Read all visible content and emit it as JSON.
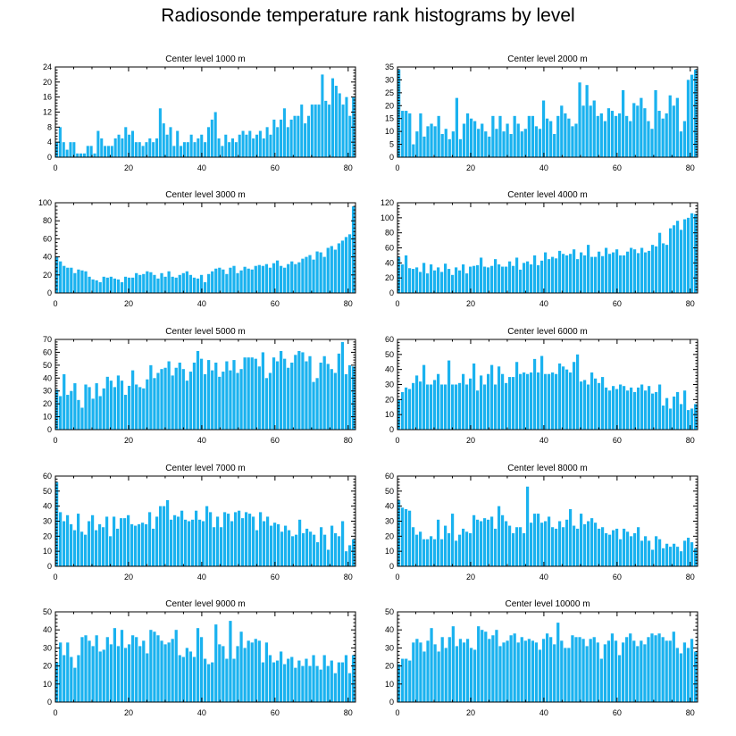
{
  "title": "Radiosonde temperature rank histograms by level",
  "colors": {
    "bar": "#1ab2ef",
    "axis": "#000000",
    "background": "#ffffff"
  },
  "chart_data": [
    {
      "type": "bar",
      "title": "Center level 1000 m",
      "xlim": [
        0,
        82
      ],
      "xticks": [
        0,
        20,
        40,
        60,
        80
      ],
      "ylim": [
        0,
        24
      ],
      "yticks": [
        0,
        4,
        8,
        12,
        16,
        20,
        24
      ],
      "values": [
        4,
        8,
        4,
        2,
        4,
        4,
        1,
        1,
        1,
        3,
        3,
        1,
        7,
        5,
        3,
        3,
        3,
        5,
        6,
        5,
        8,
        6,
        7,
        4,
        4,
        3,
        4,
        5,
        4,
        5,
        13,
        9,
        6,
        8,
        3,
        7,
        3,
        4,
        4,
        6,
        4,
        5,
        6,
        4,
        8,
        10,
        12,
        5,
        3,
        6,
        4,
        5,
        4,
        6,
        7,
        6,
        7,
        5,
        6,
        7,
        5,
        8,
        6,
        10,
        8,
        10,
        13,
        8,
        10,
        11,
        11,
        14,
        9,
        11,
        14,
        14,
        14,
        22,
        15,
        14,
        21,
        19,
        17,
        14,
        16,
        11,
        16
      ]
    },
    {
      "type": "bar",
      "title": "Center level 2000 m",
      "xlim": [
        0,
        82
      ],
      "xticks": [
        0,
        20,
        40,
        60,
        80
      ],
      "ylim": [
        0,
        35
      ],
      "yticks": [
        0,
        5,
        10,
        15,
        20,
        25,
        30,
        35
      ],
      "values": [
        34,
        18,
        18,
        17,
        5,
        10,
        17,
        8,
        12,
        13,
        12,
        16,
        9,
        11,
        7,
        10,
        23,
        7,
        13,
        17,
        15,
        14,
        11,
        13,
        10,
        8,
        16,
        11,
        16,
        10,
        13,
        9,
        16,
        13,
        10,
        11,
        16,
        16,
        12,
        11,
        22,
        15,
        14,
        9,
        16,
        20,
        17,
        15,
        12,
        13,
        29,
        20,
        28,
        20,
        22,
        16,
        17,
        14,
        19,
        18,
        16,
        17,
        26,
        16,
        14,
        21,
        20,
        23,
        19,
        14,
        11,
        26,
        18,
        15,
        17,
        24,
        20,
        23,
        10,
        14,
        30,
        32,
        34
      ]
    },
    {
      "type": "bar",
      "title": "Center level 3000 m",
      "xlim": [
        0,
        82
      ],
      "xticks": [
        0,
        20,
        40,
        60,
        80
      ],
      "ylim": [
        0,
        100
      ],
      "yticks": [
        0,
        20,
        40,
        60,
        80,
        100
      ],
      "values": [
        40,
        35,
        30,
        28,
        28,
        22,
        26,
        25,
        24,
        18,
        15,
        14,
        12,
        18,
        17,
        18,
        16,
        15,
        12,
        18,
        17,
        17,
        22,
        20,
        21,
        24,
        23,
        20,
        16,
        22,
        18,
        24,
        18,
        17,
        20,
        22,
        24,
        20,
        17,
        16,
        20,
        12,
        21,
        24,
        27,
        28,
        26,
        21,
        28,
        30,
        22,
        25,
        29,
        27,
        26,
        30,
        31,
        30,
        32,
        28,
        33,
        36,
        30,
        28,
        32,
        35,
        32,
        34,
        38,
        40,
        42,
        37,
        46,
        45,
        40,
        50,
        52,
        48,
        55,
        58,
        62,
        65,
        96
      ]
    },
    {
      "type": "bar",
      "title": "Center level 4000 m",
      "xlim": [
        0,
        82
      ],
      "xticks": [
        0,
        20,
        40,
        60,
        80
      ],
      "ylim": [
        0,
        120
      ],
      "yticks": [
        0,
        20,
        40,
        60,
        80,
        100,
        120
      ],
      "values": [
        48,
        38,
        50,
        33,
        32,
        34,
        28,
        40,
        26,
        38,
        30,
        34,
        28,
        39,
        32,
        24,
        34,
        30,
        38,
        26,
        35,
        36,
        37,
        47,
        35,
        34,
        36,
        45,
        38,
        35,
        35,
        42,
        36,
        47,
        31,
        40,
        42,
        38,
        50,
        37,
        43,
        54,
        45,
        48,
        46,
        56,
        52,
        50,
        52,
        58,
        45,
        54,
        50,
        64,
        48,
        48,
        55,
        49,
        60,
        52,
        54,
        58,
        50,
        50,
        55,
        60,
        58,
        53,
        60,
        54,
        56,
        64,
        62,
        80,
        66,
        64,
        86,
        90,
        96,
        84,
        98,
        100,
        106,
        105
      ]
    },
    {
      "type": "bar",
      "title": "Center level 5000 m",
      "xlim": [
        0,
        82
      ],
      "xticks": [
        0,
        20,
        40,
        60,
        80
      ],
      "ylim": [
        0,
        70
      ],
      "yticks": [
        0,
        10,
        20,
        30,
        40,
        50,
        60,
        70
      ],
      "values": [
        31,
        26,
        43,
        27,
        30,
        36,
        23,
        17,
        35,
        33,
        24,
        36,
        26,
        32,
        41,
        38,
        33,
        42,
        38,
        27,
        34,
        46,
        35,
        33,
        32,
        39,
        50,
        40,
        44,
        47,
        48,
        53,
        42,
        48,
        52,
        47,
        38,
        45,
        52,
        61,
        55,
        43,
        54,
        46,
        52,
        41,
        45,
        53,
        46,
        54,
        44,
        47,
        56,
        56,
        56,
        55,
        49,
        60,
        40,
        44,
        56,
        53,
        61,
        55,
        48,
        52,
        58,
        61,
        60,
        53,
        57,
        37,
        40,
        52,
        57,
        51,
        47,
        44,
        59,
        68,
        43,
        50,
        49
      ]
    },
    {
      "type": "bar",
      "title": "Center level 6000 m",
      "xlim": [
        0,
        82
      ],
      "xticks": [
        0,
        20,
        40,
        60,
        80
      ],
      "ylim": [
        0,
        60
      ],
      "yticks": [
        0,
        10,
        20,
        30,
        40,
        50,
        60
      ],
      "values": [
        20,
        25,
        28,
        27,
        31,
        36,
        32,
        43,
        30,
        30,
        33,
        37,
        30,
        30,
        46,
        30,
        30,
        31,
        37,
        30,
        34,
        44,
        26,
        36,
        30,
        37,
        43,
        30,
        42,
        37,
        31,
        35,
        35,
        45,
        37,
        38,
        37,
        38,
        47,
        38,
        49,
        37,
        37,
        38,
        37,
        44,
        42,
        40,
        38,
        45,
        50,
        32,
        33,
        30,
        38,
        34,
        31,
        35,
        28,
        26,
        29,
        27,
        30,
        29,
        26,
        28,
        25,
        28,
        30,
        26,
        29,
        24,
        25,
        30,
        16,
        21,
        14,
        22,
        25,
        17,
        26,
        13,
        14,
        17
      ]
    },
    {
      "type": "bar",
      "title": "Center level 7000 m",
      "xlim": [
        0,
        82
      ],
      "xticks": [
        0,
        20,
        40,
        60,
        80
      ],
      "ylim": [
        0,
        60
      ],
      "yticks": [
        0,
        10,
        20,
        30,
        40,
        50,
        60
      ],
      "values": [
        56,
        36,
        30,
        34,
        28,
        24,
        35,
        23,
        21,
        30,
        34,
        24,
        28,
        26,
        33,
        20,
        33,
        25,
        32,
        32,
        34,
        28,
        27,
        28,
        29,
        28,
        36,
        25,
        33,
        40,
        40,
        44,
        31,
        34,
        33,
        37,
        31,
        30,
        31,
        37,
        31,
        30,
        40,
        36,
        26,
        33,
        26,
        36,
        35,
        30,
        36,
        37,
        32,
        36,
        35,
        33,
        24,
        36,
        30,
        33,
        27,
        29,
        28,
        23,
        27,
        24,
        20,
        21,
        31,
        22,
        25,
        23,
        21,
        16,
        26,
        21,
        11,
        27,
        22,
        20,
        30,
        10,
        14,
        18
      ]
    },
    {
      "type": "bar",
      "title": "Center level 8000 m",
      "xlim": [
        0,
        82
      ],
      "xticks": [
        0,
        20,
        40,
        60,
        80
      ],
      "ylim": [
        0,
        60
      ],
      "yticks": [
        0,
        10,
        20,
        30,
        40,
        50,
        60
      ],
      "values": [
        44,
        39,
        38,
        37,
        26,
        21,
        23,
        18,
        18,
        20,
        18,
        31,
        18,
        27,
        22,
        35,
        17,
        21,
        25,
        23,
        22,
        34,
        31,
        30,
        32,
        31,
        33,
        25,
        40,
        34,
        30,
        27,
        22,
        26,
        26,
        22,
        53,
        29,
        35,
        35,
        29,
        30,
        33,
        26,
        25,
        30,
        26,
        31,
        38,
        27,
        25,
        35,
        28,
        30,
        32,
        29,
        25,
        26,
        22,
        21,
        24,
        25,
        18,
        25,
        23,
        20,
        22,
        26,
        17,
        20,
        17,
        11,
        20,
        18,
        12,
        15,
        13,
        15,
        13,
        10,
        17,
        19,
        16,
        12
      ]
    },
    {
      "type": "bar",
      "title": "Center level 9000 m",
      "xlim": [
        0,
        82
      ],
      "xticks": [
        0,
        20,
        40,
        60,
        80
      ],
      "ylim": [
        0,
        50
      ],
      "yticks": [
        0,
        10,
        20,
        30,
        40,
        50
      ],
      "values": [
        22,
        33,
        26,
        33,
        25,
        19,
        26,
        36,
        37,
        34,
        31,
        37,
        28,
        29,
        36,
        32,
        41,
        31,
        40,
        30,
        32,
        37,
        36,
        31,
        34,
        27,
        40,
        39,
        37,
        34,
        32,
        33,
        35,
        40,
        26,
        25,
        30,
        28,
        25,
        41,
        36,
        24,
        21,
        22,
        43,
        32,
        31,
        24,
        45,
        24,
        31,
        39,
        30,
        34,
        33,
        35,
        34,
        22,
        33,
        26,
        22,
        23,
        28,
        21,
        24,
        25,
        19,
        23,
        20,
        24,
        20,
        26,
        20,
        18,
        26,
        20,
        23,
        16,
        22,
        22,
        26,
        16,
        26
      ]
    },
    {
      "type": "bar",
      "title": "Center level 10000 m",
      "xlim": [
        0,
        82
      ],
      "xticks": [
        0,
        20,
        40,
        60,
        80
      ],
      "ylim": [
        0,
        50
      ],
      "yticks": [
        0,
        10,
        20,
        30,
        40,
        50
      ],
      "values": [
        21,
        24,
        24,
        23,
        33,
        35,
        33,
        28,
        34,
        41,
        32,
        28,
        36,
        30,
        36,
        42,
        31,
        35,
        33,
        35,
        30,
        29,
        42,
        40,
        39,
        35,
        37,
        40,
        31,
        33,
        34,
        37,
        38,
        33,
        36,
        34,
        35,
        34,
        33,
        29,
        35,
        38,
        36,
        32,
        44,
        34,
        30,
        30,
        37,
        36,
        36,
        35,
        31,
        35,
        36,
        33,
        24,
        32,
        34,
        38,
        34,
        26,
        33,
        36,
        38,
        34,
        31,
        34,
        32,
        36,
        38,
        37,
        38,
        36,
        34,
        34,
        39,
        30,
        27,
        33,
        30,
        35,
        28
      ]
    }
  ]
}
